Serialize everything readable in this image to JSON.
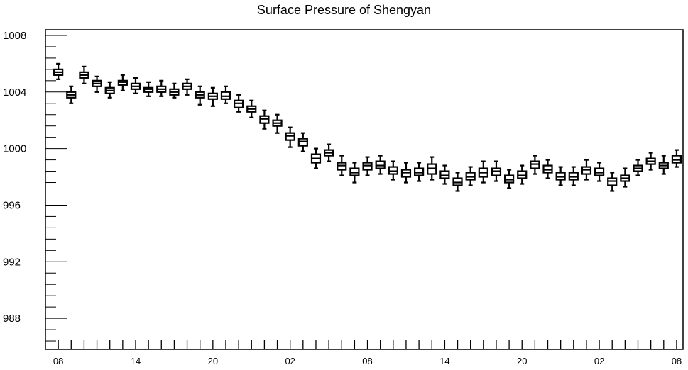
{
  "chart_data": {
    "type": "box",
    "title": "Surface Pressure of Shengyan",
    "xlabel": "",
    "ylabel": "",
    "ylim": [
      985.8,
      1008.4
    ],
    "grid": false,
    "y_ticks": [
      988,
      992,
      996,
      1000,
      1004,
      1008
    ],
    "x_tick_labels": [
      "08",
      "14",
      "20",
      "02",
      "08",
      "14",
      "20",
      "02",
      "08"
    ],
    "x_tick_hours": [
      0,
      6,
      12,
      18,
      24,
      30,
      36,
      42,
      48
    ],
    "x_range_hours": [
      -1,
      48.5
    ],
    "box_colors": {
      "stroke": "#000000",
      "fill": "#ffffff"
    },
    "boxes": [
      {
        "hour": 0,
        "min": 1004.9,
        "q1": 1005.2,
        "median": 1005.4,
        "q3": 1005.6,
        "max": 1006.0
      },
      {
        "hour": 1,
        "min": 1003.2,
        "q1": 1003.6,
        "median": 1003.8,
        "q3": 1004.0,
        "max": 1004.4
      },
      {
        "hour": 2,
        "min": 1004.6,
        "q1": 1005.0,
        "median": 1005.2,
        "q3": 1005.4,
        "max": 1005.8
      },
      {
        "hour": 3,
        "min": 1004.0,
        "q1": 1004.4,
        "median": 1004.6,
        "q3": 1004.8,
        "max": 1005.1
      },
      {
        "hour": 4,
        "min": 1003.6,
        "q1": 1003.9,
        "median": 1004.1,
        "q3": 1004.3,
        "max": 1004.7
      },
      {
        "hour": 5,
        "min": 1004.1,
        "q1": 1004.5,
        "median": 1004.7,
        "q3": 1004.8,
        "max": 1005.2
      },
      {
        "hour": 6,
        "min": 1003.9,
        "q1": 1004.2,
        "median": 1004.4,
        "q3": 1004.6,
        "max": 1005.0
      },
      {
        "hour": 7,
        "min": 1003.7,
        "q1": 1004.0,
        "median": 1004.2,
        "q3": 1004.3,
        "max": 1004.7
      },
      {
        "hour": 8,
        "min": 1003.7,
        "q1": 1004.0,
        "median": 1004.2,
        "q3": 1004.4,
        "max": 1004.8
      },
      {
        "hour": 9,
        "min": 1003.6,
        "q1": 1003.8,
        "median": 1004.0,
        "q3": 1004.2,
        "max": 1004.6
      },
      {
        "hour": 10,
        "min": 1003.8,
        "q1": 1004.2,
        "median": 1004.4,
        "q3": 1004.6,
        "max": 1004.9
      },
      {
        "hour": 11,
        "min": 1003.1,
        "q1": 1003.6,
        "median": 1003.8,
        "q3": 1004.0,
        "max": 1004.4
      },
      {
        "hour": 12,
        "min": 1003.0,
        "q1": 1003.5,
        "median": 1003.7,
        "q3": 1003.9,
        "max": 1004.3
      },
      {
        "hour": 13,
        "min": 1003.2,
        "q1": 1003.5,
        "median": 1003.7,
        "q3": 1004.0,
        "max": 1004.4
      },
      {
        "hour": 14,
        "min": 1002.6,
        "q1": 1002.9,
        "median": 1003.2,
        "q3": 1003.4,
        "max": 1003.8
      },
      {
        "hour": 15,
        "min": 1002.2,
        "q1": 1002.6,
        "median": 1002.8,
        "q3": 1003.0,
        "max": 1003.4
      },
      {
        "hour": 16,
        "min": 1001.4,
        "q1": 1001.8,
        "median": 1002.1,
        "q3": 1002.3,
        "max": 1002.7
      },
      {
        "hour": 17,
        "min": 1001.1,
        "q1": 1001.6,
        "median": 1001.8,
        "q3": 1002.0,
        "max": 1002.4
      },
      {
        "hour": 18,
        "min": 1000.1,
        "q1": 1000.6,
        "median": 1000.9,
        "q3": 1001.1,
        "max": 1001.5
      },
      {
        "hour": 19,
        "min": 999.8,
        "q1": 1000.2,
        "median": 1000.5,
        "q3": 1000.7,
        "max": 1001.1
      },
      {
        "hour": 20,
        "min": 998.6,
        "q1": 999.0,
        "median": 999.3,
        "q3": 999.6,
        "max": 1000.0
      },
      {
        "hour": 21,
        "min": 999.1,
        "q1": 999.5,
        "median": 999.7,
        "q3": 999.9,
        "max": 1000.3
      },
      {
        "hour": 22,
        "min": 998.1,
        "q1": 998.5,
        "median": 998.8,
        "q3": 999.0,
        "max": 999.5
      },
      {
        "hour": 23,
        "min": 997.6,
        "q1": 998.1,
        "median": 998.3,
        "q3": 998.6,
        "max": 999.0
      },
      {
        "hour": 24,
        "min": 998.1,
        "q1": 998.5,
        "median": 998.8,
        "q3": 999.0,
        "max": 999.4
      },
      {
        "hour": 25,
        "min": 998.2,
        "q1": 998.6,
        "median": 998.8,
        "q3": 999.1,
        "max": 999.5
      },
      {
        "hour": 26,
        "min": 997.8,
        "q1": 998.2,
        "median": 998.4,
        "q3": 998.7,
        "max": 999.1
      },
      {
        "hour": 27,
        "min": 997.6,
        "q1": 998.0,
        "median": 998.3,
        "q3": 998.5,
        "max": 999.0
      },
      {
        "hour": 28,
        "min": 997.7,
        "q1": 998.1,
        "median": 998.3,
        "q3": 998.6,
        "max": 999.0
      },
      {
        "hour": 29,
        "min": 997.8,
        "q1": 998.2,
        "median": 998.6,
        "q3": 998.9,
        "max": 999.4
      },
      {
        "hour": 30,
        "min": 997.5,
        "q1": 997.9,
        "median": 998.1,
        "q3": 998.4,
        "max": 998.8
      },
      {
        "hour": 31,
        "min": 997.0,
        "q1": 997.4,
        "median": 997.6,
        "q3": 997.9,
        "max": 998.3
      },
      {
        "hour": 32,
        "min": 997.4,
        "q1": 997.8,
        "median": 998.0,
        "q3": 998.3,
        "max": 998.7
      },
      {
        "hour": 33,
        "min": 997.6,
        "q1": 998.0,
        "median": 998.3,
        "q3": 998.6,
        "max": 999.1
      },
      {
        "hour": 34,
        "min": 997.7,
        "q1": 998.1,
        "median": 998.4,
        "q3": 998.6,
        "max": 999.1
      },
      {
        "hour": 35,
        "min": 997.2,
        "q1": 997.6,
        "median": 997.8,
        "q3": 998.1,
        "max": 998.5
      },
      {
        "hour": 36,
        "min": 997.5,
        "q1": 997.9,
        "median": 998.1,
        "q3": 998.4,
        "max": 998.8
      },
      {
        "hour": 37,
        "min": 998.2,
        "q1": 998.6,
        "median": 998.9,
        "q3": 999.1,
        "max": 999.5
      },
      {
        "hour": 38,
        "min": 997.9,
        "q1": 998.3,
        "median": 998.5,
        "q3": 998.8,
        "max": 999.2
      },
      {
        "hour": 39,
        "min": 997.4,
        "q1": 997.8,
        "median": 998.0,
        "q3": 998.3,
        "max": 998.7
      },
      {
        "hour": 40,
        "min": 997.4,
        "q1": 997.8,
        "median": 998.0,
        "q3": 998.3,
        "max": 998.7
      },
      {
        "hour": 41,
        "min": 997.8,
        "q1": 998.2,
        "median": 998.5,
        "q3": 998.7,
        "max": 999.2
      },
      {
        "hour": 42,
        "min": 997.7,
        "q1": 998.1,
        "median": 998.3,
        "q3": 998.6,
        "max": 999.0
      },
      {
        "hour": 43,
        "min": 997.0,
        "q1": 997.4,
        "median": 997.7,
        "q3": 997.9,
        "max": 998.3
      },
      {
        "hour": 44,
        "min": 997.3,
        "q1": 997.7,
        "median": 997.9,
        "q3": 998.1,
        "max": 998.6
      },
      {
        "hour": 45,
        "min": 998.1,
        "q1": 998.4,
        "median": 998.6,
        "q3": 998.8,
        "max": 999.2
      },
      {
        "hour": 46,
        "min": 998.5,
        "q1": 998.9,
        "median": 999.1,
        "q3": 999.3,
        "max": 999.7
      },
      {
        "hour": 47,
        "min": 998.2,
        "q1": 998.6,
        "median": 998.8,
        "q3": 999.0,
        "max": 999.5
      },
      {
        "hour": 48,
        "min": 998.7,
        "q1": 999.0,
        "median": 999.2,
        "q3": 999.5,
        "max": 999.9
      }
    ]
  }
}
